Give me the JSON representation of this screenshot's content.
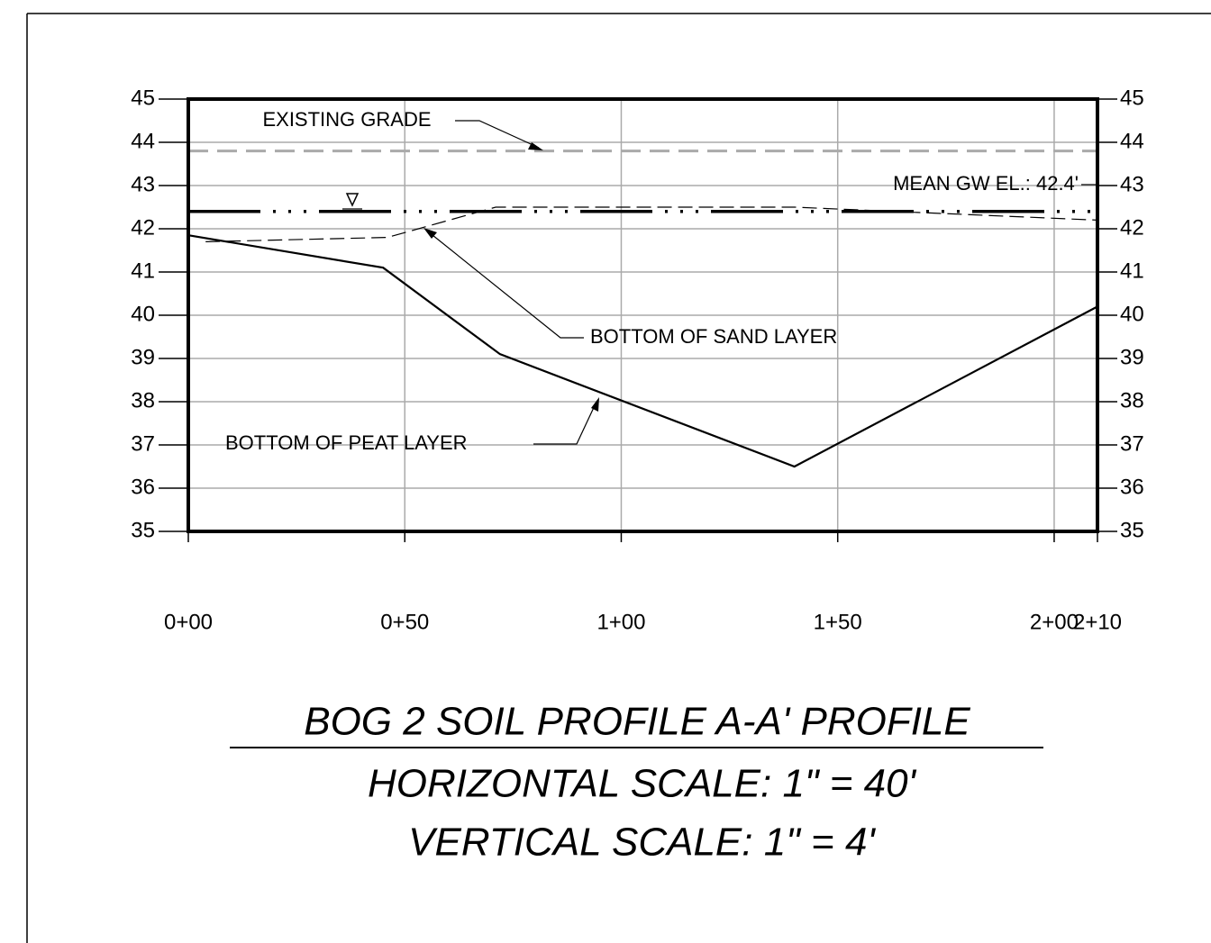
{
  "chart_data": {
    "type": "line",
    "title": "BOG 2 SOIL PROFILE A-A' PROFILE",
    "subtitle": [
      "HORIZONTAL SCALE: 1\" = 40'",
      "VERTICAL SCALE: 1\" = 4'"
    ],
    "xlim": [
      0,
      210
    ],
    "xticks": [
      {
        "value": 0,
        "label": "0+00"
      },
      {
        "value": 50,
        "label": "0+50"
      },
      {
        "value": 100,
        "label": "1+00"
      },
      {
        "value": 150,
        "label": "1+50"
      },
      {
        "value": 200,
        "label": "2+00"
      },
      {
        "value": 210,
        "label": "2+10"
      }
    ],
    "ylim": [
      35,
      45
    ],
    "yticks": [
      35,
      36,
      37,
      38,
      39,
      40,
      41,
      42,
      43,
      44,
      45
    ],
    "y2lim": [
      35,
      45
    ],
    "y2ticks": [
      35,
      36,
      37,
      38,
      39,
      40,
      41,
      42,
      43,
      44,
      45
    ],
    "grid": true,
    "series": [
      {
        "name": "EXISTING GRADE",
        "color": "#aaaaaa",
        "style": "dashed",
        "x": [
          0,
          210
        ],
        "values": [
          43.8,
          43.8
        ]
      },
      {
        "name": "MEAN GW EL.: 42.4'",
        "color": "#000000",
        "style": "dash-dot",
        "x": [
          0,
          210
        ],
        "values": [
          42.4,
          42.4
        ]
      },
      {
        "name": "BOTTOM OF SAND LAYER",
        "color": "#000000",
        "style": "thin-dashed",
        "x": [
          4,
          46,
          71,
          140,
          210
        ],
        "values": [
          41.7,
          41.8,
          42.5,
          42.5,
          42.2
        ]
      },
      {
        "name": "BOTTOM OF PEAT LAYER",
        "color": "#000000",
        "style": "solid",
        "x": [
          0,
          45,
          72,
          140,
          210
        ],
        "values": [
          41.85,
          41.1,
          39.1,
          36.5,
          40.2
        ]
      }
    ]
  }
}
